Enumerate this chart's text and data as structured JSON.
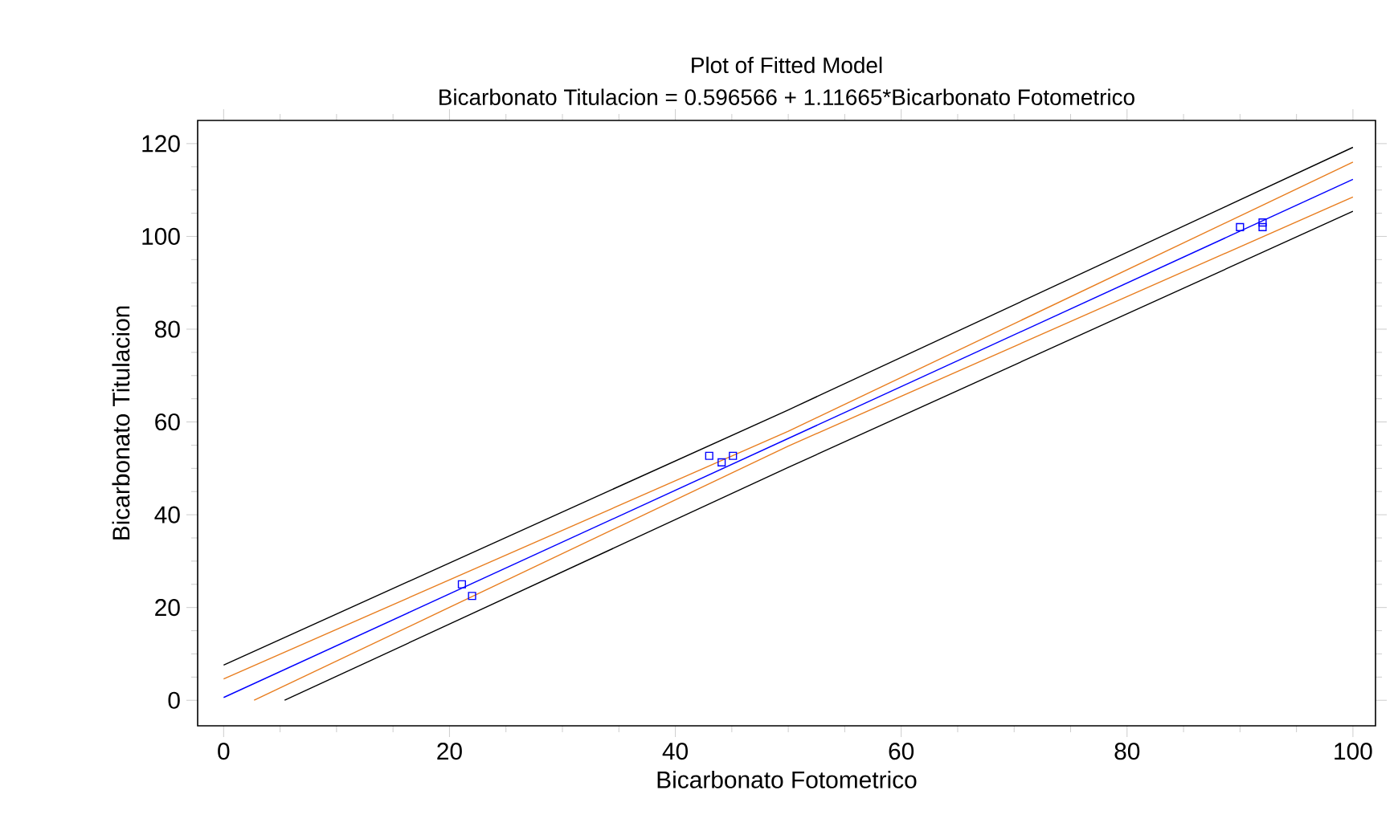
{
  "chart_data": {
    "type": "line",
    "title": "Plot of Fitted Model",
    "subtitle": "Bicarbonato Titulacion = 0.596566 + 1.11665*Bicarbonato Fotometrico",
    "xlabel": "Bicarbonato Fotometrico",
    "ylabel": "Bicarbonato Titulacion",
    "xlim": [
      -2.3,
      102
    ],
    "ylim": [
      -5.5,
      125
    ],
    "xticks": [
      0,
      20,
      40,
      60,
      80,
      100
    ],
    "yticks": [
      0,
      20,
      40,
      60,
      80,
      100,
      120
    ],
    "line_style": "solid",
    "series": [
      {
        "color": "#000000",
        "x": [
          0,
          50,
          100
        ],
        "values": [
          7.6,
          62.6,
          119.2
        ]
      },
      {
        "color": "#e87d1e",
        "x": [
          0,
          50,
          100
        ],
        "values": [
          4.6,
          58.0,
          116.0
        ]
      },
      {
        "color": "#0000ff",
        "x": [
          0,
          100
        ],
        "values": [
          0.6,
          112.3
        ]
      },
      {
        "color": "#e87d1e",
        "x": [
          2.7,
          50,
          100
        ],
        "values": [
          0,
          54.8,
          108.5
        ]
      },
      {
        "color": "#000000",
        "x": [
          5.4,
          50,
          100
        ],
        "values": [
          0,
          50.2,
          105.4
        ]
      },
      {
        "type": "scatter",
        "color": "#0000ff",
        "marker": "square",
        "x": [
          21.1,
          22.0,
          43.0,
          44.1,
          45.1,
          90.0,
          92.0,
          92.0
        ],
        "values": [
          25.0,
          22.5,
          52.7,
          51.3,
          52.7,
          102.0,
          103.0,
          102.0
        ]
      }
    ]
  }
}
